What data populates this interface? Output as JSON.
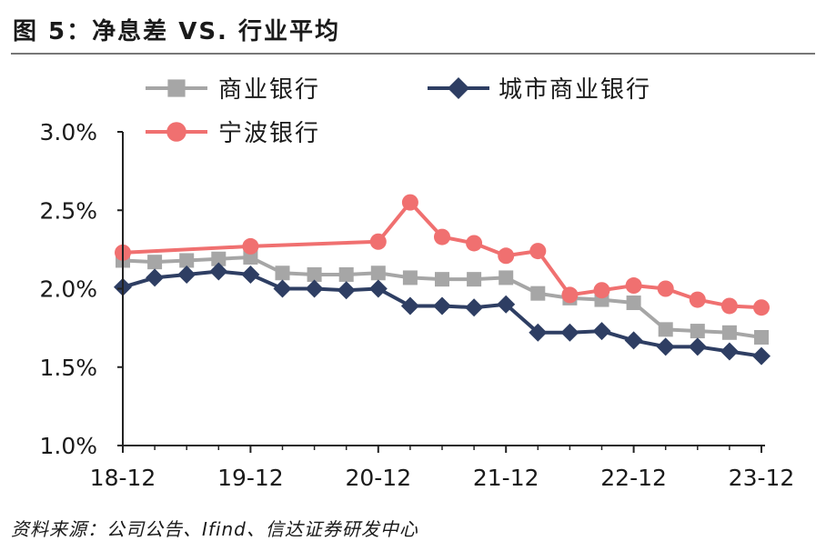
{
  "title": "图 5：净息差 VS. 行业平均",
  "source": "资料来源：公司公告、Ifind、信达证券研发中心",
  "colors": {
    "commercial_banks": "#A6A6A6",
    "city_commercial_banks": "#2E3E63",
    "ningbo_bank": "#F07070",
    "axis": "#222222"
  },
  "chart_data": {
    "type": "line",
    "title": "净息差 VS. 行业平均",
    "xlabel": "",
    "ylabel": "",
    "ylim": [
      1.0,
      3.0
    ],
    "yticks": [
      "1.0%",
      "1.5%",
      "2.0%",
      "2.5%",
      "3.0%"
    ],
    "ytick_values": [
      1.0,
      1.5,
      2.0,
      2.5,
      3.0
    ],
    "x": [
      "18-12",
      "19-03",
      "19-06",
      "19-09",
      "19-12",
      "20-03",
      "20-06",
      "20-09",
      "20-12",
      "21-03",
      "21-06",
      "21-09",
      "21-12",
      "22-03",
      "22-06",
      "22-09",
      "22-12",
      "23-03",
      "23-06",
      "23-09",
      "23-12"
    ],
    "xtick_labels": [
      "18-12",
      "19-12",
      "20-12",
      "21-12",
      "22-12",
      "23-12"
    ],
    "legend_position": "top",
    "series": [
      {
        "name": "商业银行",
        "marker": "square",
        "values": [
          2.18,
          2.17,
          2.18,
          2.19,
          2.2,
          2.1,
          2.09,
          2.09,
          2.1,
          2.07,
          2.06,
          2.06,
          2.07,
          1.97,
          1.94,
          1.93,
          1.91,
          1.74,
          1.73,
          1.72,
          1.69
        ]
      },
      {
        "name": "城市商业银行",
        "marker": "diamond",
        "values": [
          2.01,
          2.07,
          2.09,
          2.11,
          2.09,
          2.0,
          2.0,
          1.99,
          2.0,
          1.89,
          1.89,
          1.88,
          1.9,
          1.72,
          1.72,
          1.73,
          1.67,
          1.63,
          1.63,
          1.6,
          1.57
        ]
      },
      {
        "name": "宁波银行",
        "marker": "circle",
        "markers_at": [
          0,
          4,
          8,
          9,
          10,
          11,
          12,
          13,
          14,
          15,
          16,
          17,
          18,
          19,
          20
        ],
        "values": [
          2.23,
          null,
          null,
          null,
          2.27,
          null,
          null,
          null,
          2.3,
          2.55,
          2.33,
          2.29,
          2.21,
          2.24,
          1.96,
          1.99,
          2.02,
          2.0,
          1.93,
          1.89,
          1.88
        ]
      }
    ]
  }
}
